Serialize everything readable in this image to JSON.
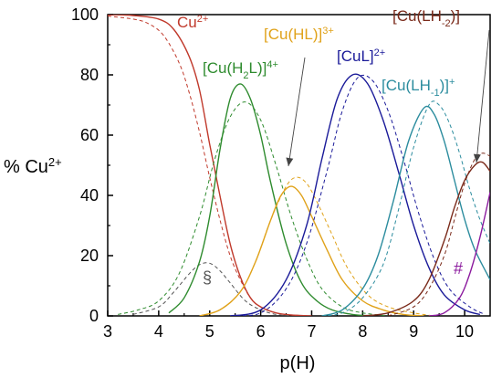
{
  "chart_data": {
    "type": "line",
    "xlabel": "p(H)",
    "ylabel": "% Cu2+",
    "xlim": [
      3,
      10.5
    ],
    "ylim": [
      0,
      100
    ],
    "xticks": [
      3,
      4,
      5,
      6,
      7,
      8,
      9,
      10
    ],
    "yticks": [
      0,
      20,
      40,
      60,
      80,
      100
    ],
    "grid": false,
    "species_labels": [
      {
        "id": "cu",
        "base": "Cu",
        "sup": "2+",
        "color": "#c0392b"
      },
      {
        "id": "cuh2l",
        "pre": "[Cu(H",
        "sub": "2",
        "post": "L)]",
        "sup": "4+",
        "color": "#2e8b2e"
      },
      {
        "id": "cuhl",
        "base": "[Cu(HL)]",
        "sup": "3+",
        "color": "#e0a21a"
      },
      {
        "id": "cul",
        "base": "[CuL]",
        "sup": "2+",
        "color": "#1a1a99"
      },
      {
        "id": "culh1",
        "pre": "[Cu(LH",
        "sub": "-1",
        "post": ")]",
        "sup": "+",
        "color": "#2b8c9e"
      },
      {
        "id": "culh2",
        "pre": "[Cu(LH",
        "sub": "-2",
        "post": ")]",
        "sup": "",
        "color": "#7a2a1a"
      }
    ],
    "annotations": [
      {
        "text": "§",
        "color": "#555555"
      },
      {
        "text": "#",
        "color": "#8b1a9e"
      }
    ],
    "series": [
      {
        "id": "cu",
        "style": "solid",
        "color": "#c0392b",
        "x": [
          3,
          3.5,
          4,
          4.3,
          4.6,
          4.8,
          5,
          5.2,
          5.4,
          5.6,
          5.8,
          6,
          6.3,
          6.6,
          7
        ],
        "y": [
          100,
          99.7,
          98.5,
          95,
          86,
          75,
          57,
          40,
          24,
          13,
          6,
          3,
          1,
          0.3,
          0
        ]
      },
      {
        "id": "cu",
        "style": "dashed",
        "color": "#c0392b",
        "x": [
          3,
          3.5,
          3.8,
          4.1,
          4.4,
          4.6,
          4.8,
          5,
          5.2,
          5.4,
          5.6,
          5.8,
          6,
          6.3,
          6.6,
          7
        ],
        "y": [
          99.5,
          98.5,
          97,
          93,
          84,
          74,
          61,
          46,
          32,
          20,
          12,
          6,
          3,
          1,
          0.3,
          0
        ]
      },
      {
        "id": "sec",
        "style": "dashed",
        "color": "#555555",
        "x": [
          3.5,
          4,
          4.3,
          4.6,
          4.8,
          5,
          5.2,
          5.4,
          5.7,
          6,
          6.3,
          6.6
        ],
        "y": [
          0.5,
          3,
          8,
          14,
          17,
          17.5,
          15,
          11,
          5,
          2,
          0.5,
          0
        ]
      },
      {
        "id": "cuh2l",
        "style": "solid",
        "color": "#2e8b2e",
        "x": [
          4.2,
          4.5,
          4.8,
          5,
          5.2,
          5.4,
          5.6,
          5.8,
          6,
          6.2,
          6.5,
          6.8,
          7.1,
          7.4,
          7.8,
          8.2
        ],
        "y": [
          1,
          6,
          18,
          33,
          55,
          72,
          77,
          72,
          60,
          44,
          24,
          11,
          5,
          2,
          0.5,
          0
        ]
      },
      {
        "id": "cuh2l",
        "style": "dashed",
        "color": "#2e8b2e",
        "x": [
          3.2,
          3.6,
          4,
          4.4,
          4.8,
          5.1,
          5.4,
          5.7,
          6,
          6.3,
          6.6,
          6.9,
          7.2,
          7.6,
          8,
          8.5
        ],
        "y": [
          0.5,
          2,
          5,
          14,
          33,
          52,
          66,
          71,
          65,
          50,
          33,
          19,
          9,
          3,
          1,
          0
        ]
      },
      {
        "id": "cuhl",
        "style": "solid",
        "color": "#e0a21a",
        "x": [
          4.8,
          5.2,
          5.6,
          5.9,
          6.2,
          6.4,
          6.6,
          6.8,
          7,
          7.3,
          7.6,
          8,
          8.4,
          8.8,
          9.2
        ],
        "y": [
          0,
          2,
          8,
          18,
          32,
          40,
          43,
          40,
          33,
          22,
          12,
          5,
          2,
          0.5,
          0
        ]
      },
      {
        "id": "cuhl",
        "style": "dashed",
        "color": "#e0a21a",
        "x": [
          4.8,
          5.2,
          5.6,
          5.9,
          6.2,
          6.5,
          6.7,
          6.9,
          7.1,
          7.4,
          7.7,
          8.1,
          8.5,
          9,
          9.4
        ],
        "y": [
          0,
          2,
          8,
          18,
          32,
          43,
          46,
          44,
          38,
          27,
          16,
          7,
          3,
          1,
          0
        ]
      },
      {
        "id": "cul",
        "style": "solid",
        "color": "#1a1a99",
        "x": [
          5.4,
          6,
          6.5,
          6.9,
          7.2,
          7.5,
          7.8,
          8.1,
          8.4,
          8.7,
          9,
          9.3,
          9.6,
          10,
          10.3
        ],
        "y": [
          0,
          2,
          12,
          30,
          52,
          72,
          80,
          77,
          65,
          48,
          30,
          16,
          7,
          2,
          0.5
        ]
      },
      {
        "id": "cul",
        "style": "dashed",
        "color": "#1a1a99",
        "x": [
          5.4,
          6,
          6.5,
          6.9,
          7.3,
          7.6,
          7.9,
          8.2,
          8.5,
          8.8,
          9.1,
          9.4,
          9.7,
          10.1,
          10.4
        ],
        "y": [
          0,
          1,
          9,
          24,
          48,
          68,
          79,
          78,
          68,
          52,
          34,
          19,
          9,
          3,
          0.5
        ]
      },
      {
        "id": "culh1",
        "style": "solid",
        "color": "#2b8c9e",
        "x": [
          7.2,
          7.6,
          8,
          8.3,
          8.6,
          8.9,
          9.2,
          9.4,
          9.6,
          9.8,
          10,
          10.2,
          10.5
        ],
        "y": [
          0,
          2,
          9,
          20,
          38,
          58,
          69,
          67,
          58,
          45,
          32,
          22,
          12
        ]
      },
      {
        "id": "culh1",
        "style": "dashed",
        "color": "#2b8c9e",
        "x": [
          7.2,
          7.6,
          8,
          8.4,
          8.7,
          9,
          9.3,
          9.5,
          9.7,
          9.9,
          10.1,
          10.3,
          10.5
        ],
        "y": [
          0,
          1,
          6,
          17,
          35,
          56,
          70,
          70,
          64,
          54,
          42,
          32,
          24
        ]
      },
      {
        "id": "culh2",
        "style": "solid",
        "color": "#7a2a1a",
        "x": [
          8,
          8.5,
          9,
          9.3,
          9.6,
          9.8,
          10,
          10.2,
          10.35,
          10.5
        ],
        "y": [
          0,
          1,
          5,
          12,
          25,
          36,
          45,
          50,
          51,
          48
        ]
      },
      {
        "id": "culh2",
        "style": "dashed",
        "color": "#7a2a1a",
        "x": [
          8.5,
          9,
          9.3,
          9.6,
          9.8,
          10,
          10.2,
          10.35,
          10.5
        ],
        "y": [
          0,
          3,
          9,
          20,
          32,
          44,
          52,
          54,
          53
        ]
      },
      {
        "id": "hash",
        "style": "solid",
        "color": "#8b1a9e",
        "x": [
          9.3,
          9.6,
          9.9,
          10.1,
          10.3,
          10.5
        ],
        "y": [
          0,
          1,
          6,
          14,
          26,
          41
        ]
      }
    ]
  }
}
